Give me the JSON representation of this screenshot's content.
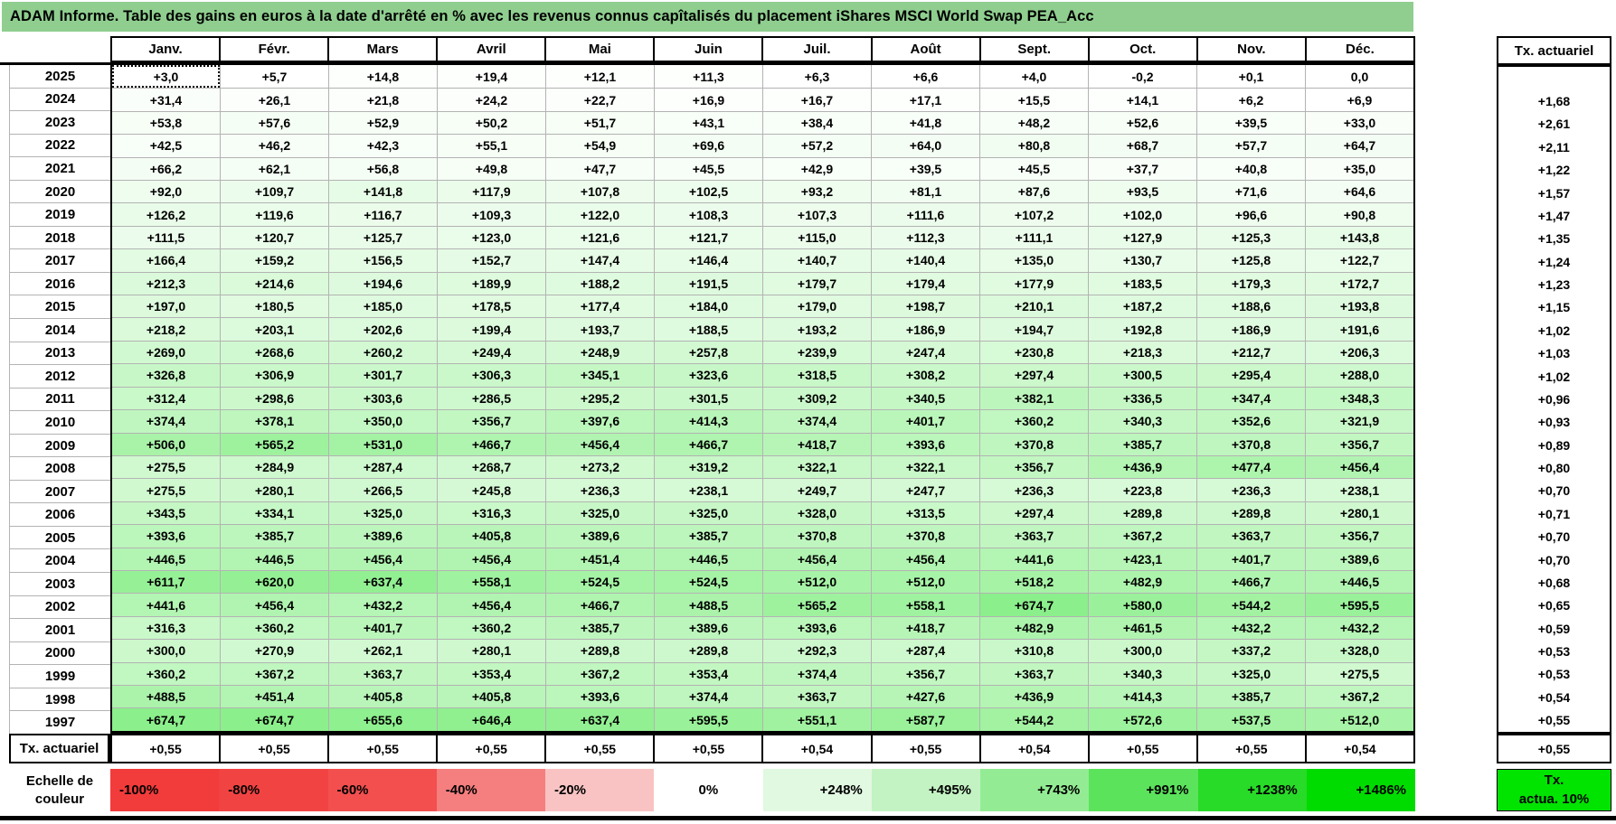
{
  "title": "ADAM Informe. Table des gains en euros à la date d'arrêté en % avec les revenus connus capîtalisés du placement iShares MSCI World Swap PEA_Acc",
  "columns": [
    "Janv.",
    "Févr.",
    "Mars",
    "Avril",
    "Mai",
    "Juin",
    "Juil.",
    "Août",
    "Sept.",
    "Oct.",
    "Nov.",
    "Déc."
  ],
  "right_column_header": "Tx. actuariel",
  "selected_cell": {
    "row_index": 0,
    "col_index": 0
  },
  "rows": [
    {
      "year": "2025",
      "values": [
        "+3,0",
        "+5,7",
        "+14,8",
        "+19,4",
        "+12,1",
        "+11,3",
        "+6,3",
        "+6,6",
        "+4,0",
        "-0,2",
        "+0,1",
        "0,0"
      ],
      "tx": ""
    },
    {
      "year": "2024",
      "values": [
        "+31,4",
        "+26,1",
        "+21,8",
        "+24,2",
        "+22,7",
        "+16,9",
        "+16,7",
        "+17,1",
        "+15,5",
        "+14,1",
        "+6,2",
        "+6,9"
      ],
      "tx": "+1,68"
    },
    {
      "year": "2023",
      "values": [
        "+53,8",
        "+57,6",
        "+52,9",
        "+50,2",
        "+51,7",
        "+43,1",
        "+38,4",
        "+41,8",
        "+48,2",
        "+52,6",
        "+39,5",
        "+33,0"
      ],
      "tx": "+2,61"
    },
    {
      "year": "2022",
      "values": [
        "+42,5",
        "+46,2",
        "+42,3",
        "+55,1",
        "+54,9",
        "+69,6",
        "+57,2",
        "+64,0",
        "+80,8",
        "+68,7",
        "+57,7",
        "+64,7"
      ],
      "tx": "+2,11"
    },
    {
      "year": "2021",
      "values": [
        "+66,2",
        "+62,1",
        "+56,8",
        "+49,8",
        "+47,7",
        "+45,5",
        "+42,9",
        "+39,5",
        "+45,5",
        "+37,7",
        "+40,8",
        "+35,0"
      ],
      "tx": "+1,22"
    },
    {
      "year": "2020",
      "values": [
        "+92,0",
        "+109,7",
        "+141,8",
        "+117,9",
        "+107,8",
        "+102,5",
        "+93,2",
        "+81,1",
        "+87,6",
        "+93,5",
        "+71,6",
        "+64,6"
      ],
      "tx": "+1,57"
    },
    {
      "year": "2019",
      "values": [
        "+126,2",
        "+119,6",
        "+116,7",
        "+109,3",
        "+122,0",
        "+108,3",
        "+107,3",
        "+111,6",
        "+107,2",
        "+102,0",
        "+96,6",
        "+90,8"
      ],
      "tx": "+1,47"
    },
    {
      "year": "2018",
      "values": [
        "+111,5",
        "+120,7",
        "+125,7",
        "+123,0",
        "+121,6",
        "+121,7",
        "+115,0",
        "+112,3",
        "+111,1",
        "+127,9",
        "+125,3",
        "+143,8"
      ],
      "tx": "+1,35"
    },
    {
      "year": "2017",
      "values": [
        "+166,4",
        "+159,2",
        "+156,5",
        "+152,7",
        "+147,4",
        "+146,4",
        "+140,7",
        "+140,4",
        "+135,0",
        "+130,7",
        "+125,8",
        "+122,7"
      ],
      "tx": "+1,24"
    },
    {
      "year": "2016",
      "values": [
        "+212,3",
        "+214,6",
        "+194,6",
        "+189,9",
        "+188,2",
        "+191,5",
        "+179,7",
        "+179,4",
        "+177,9",
        "+183,5",
        "+179,3",
        "+172,7"
      ],
      "tx": "+1,23"
    },
    {
      "year": "2015",
      "values": [
        "+197,0",
        "+180,5",
        "+185,0",
        "+178,5",
        "+177,4",
        "+184,0",
        "+179,0",
        "+198,7",
        "+210,1",
        "+187,2",
        "+188,6",
        "+193,8"
      ],
      "tx": "+1,15"
    },
    {
      "year": "2014",
      "values": [
        "+218,2",
        "+203,1",
        "+202,6",
        "+199,4",
        "+193,7",
        "+188,5",
        "+193,2",
        "+186,9",
        "+194,7",
        "+192,8",
        "+186,9",
        "+191,6"
      ],
      "tx": "+1,02"
    },
    {
      "year": "2013",
      "values": [
        "+269,0",
        "+268,6",
        "+260,2",
        "+249,4",
        "+248,9",
        "+257,8",
        "+239,9",
        "+247,4",
        "+230,8",
        "+218,3",
        "+212,7",
        "+206,3"
      ],
      "tx": "+1,03"
    },
    {
      "year": "2012",
      "values": [
        "+326,8",
        "+306,9",
        "+301,7",
        "+306,3",
        "+345,1",
        "+323,6",
        "+318,5",
        "+308,2",
        "+297,4",
        "+300,5",
        "+295,4",
        "+288,0"
      ],
      "tx": "+1,02"
    },
    {
      "year": "2011",
      "values": [
        "+312,4",
        "+298,6",
        "+303,6",
        "+286,5",
        "+295,2",
        "+301,5",
        "+309,2",
        "+340,5",
        "+382,1",
        "+336,5",
        "+347,4",
        "+348,3"
      ],
      "tx": "+0,96"
    },
    {
      "year": "2010",
      "values": [
        "+374,4",
        "+378,1",
        "+350,0",
        "+356,7",
        "+397,6",
        "+414,3",
        "+374,4",
        "+401,7",
        "+360,2",
        "+340,3",
        "+352,6",
        "+321,9"
      ],
      "tx": "+0,93"
    },
    {
      "year": "2009",
      "values": [
        "+506,0",
        "+565,2",
        "+531,0",
        "+466,7",
        "+456,4",
        "+466,7",
        "+418,7",
        "+393,6",
        "+370,8",
        "+385,7",
        "+370,8",
        "+356,7"
      ],
      "tx": "+0,89"
    },
    {
      "year": "2008",
      "values": [
        "+275,5",
        "+284,9",
        "+287,4",
        "+268,7",
        "+273,2",
        "+319,2",
        "+322,1",
        "+322,1",
        "+356,7",
        "+436,9",
        "+477,4",
        "+456,4"
      ],
      "tx": "+0,80"
    },
    {
      "year": "2007",
      "values": [
        "+275,5",
        "+280,1",
        "+266,5",
        "+245,8",
        "+236,3",
        "+238,1",
        "+249,7",
        "+247,7",
        "+236,3",
        "+223,8",
        "+236,3",
        "+238,1"
      ],
      "tx": "+0,70"
    },
    {
      "year": "2006",
      "values": [
        "+343,5",
        "+334,1",
        "+325,0",
        "+316,3",
        "+325,0",
        "+325,0",
        "+328,0",
        "+313,5",
        "+297,4",
        "+289,8",
        "+289,8",
        "+280,1"
      ],
      "tx": "+0,71"
    },
    {
      "year": "2005",
      "values": [
        "+393,6",
        "+385,7",
        "+389,6",
        "+405,8",
        "+389,6",
        "+385,7",
        "+370,8",
        "+370,8",
        "+363,7",
        "+367,2",
        "+363,7",
        "+356,7"
      ],
      "tx": "+0,70"
    },
    {
      "year": "2004",
      "values": [
        "+446,5",
        "+446,5",
        "+456,4",
        "+456,4",
        "+451,4",
        "+446,5",
        "+456,4",
        "+456,4",
        "+441,6",
        "+423,1",
        "+401,7",
        "+389,6"
      ],
      "tx": "+0,70"
    },
    {
      "year": "2003",
      "values": [
        "+611,7",
        "+620,0",
        "+637,4",
        "+558,1",
        "+524,5",
        "+524,5",
        "+512,0",
        "+512,0",
        "+518,2",
        "+482,9",
        "+466,7",
        "+446,5"
      ],
      "tx": "+0,68"
    },
    {
      "year": "2002",
      "values": [
        "+441,6",
        "+456,4",
        "+432,2",
        "+456,4",
        "+466,7",
        "+488,5",
        "+565,2",
        "+558,1",
        "+674,7",
        "+580,0",
        "+544,2",
        "+595,5"
      ],
      "tx": "+0,65"
    },
    {
      "year": "2001",
      "values": [
        "+316,3",
        "+360,2",
        "+401,7",
        "+360,2",
        "+385,7",
        "+389,6",
        "+393,6",
        "+418,7",
        "+482,9",
        "+461,5",
        "+432,2",
        "+432,2"
      ],
      "tx": "+0,59"
    },
    {
      "year": "2000",
      "values": [
        "+300,0",
        "+270,9",
        "+262,1",
        "+280,1",
        "+289,8",
        "+289,8",
        "+292,3",
        "+287,4",
        "+310,8",
        "+300,0",
        "+337,2",
        "+328,0"
      ],
      "tx": "+0,53"
    },
    {
      "year": "1999",
      "values": [
        "+360,2",
        "+367,2",
        "+363,7",
        "+353,4",
        "+367,2",
        "+353,4",
        "+374,4",
        "+356,7",
        "+363,7",
        "+340,3",
        "+325,0",
        "+275,5"
      ],
      "tx": "+0,53"
    },
    {
      "year": "1998",
      "values": [
        "+488,5",
        "+451,4",
        "+405,8",
        "+405,8",
        "+393,6",
        "+374,4",
        "+363,7",
        "+427,6",
        "+436,9",
        "+414,3",
        "+385,7",
        "+367,2"
      ],
      "tx": "+0,54"
    },
    {
      "year": "1997",
      "values": [
        "+674,7",
        "+674,7",
        "+655,6",
        "+646,4",
        "+637,4",
        "+595,5",
        "+551,1",
        "+587,7",
        "+544,2",
        "+572,6",
        "+537,5",
        "+512,0"
      ],
      "tx": "+0,55"
    }
  ],
  "footer_row": {
    "label": "Tx. actuariel",
    "values": [
      "+0,55",
      "+0,55",
      "+0,55",
      "+0,55",
      "+0,55",
      "+0,55",
      "+0,54",
      "+0,55",
      "+0,54",
      "+0,55",
      "+0,55",
      "+0,54"
    ],
    "tx": "+0,55"
  },
  "color_scale": {
    "label_line1": "Echelle de",
    "label_line2": "couleur",
    "stops": [
      {
        "label": "-100%",
        "color": "#F23B3B",
        "align": "left"
      },
      {
        "label": "-80%",
        "color": "#F24343",
        "align": "left"
      },
      {
        "label": "-60%",
        "color": "#F34F4F",
        "align": "left"
      },
      {
        "label": "-40%",
        "color": "#F57E7E",
        "align": "left"
      },
      {
        "label": "-20%",
        "color": "#F9C3C3",
        "align": "left"
      },
      {
        "label": "0%",
        "color": "#FFFFFF",
        "align": "center"
      },
      {
        "label": "+248%",
        "color": "#E1F8E1",
        "align": "right"
      },
      {
        "label": "+495%",
        "color": "#C3F3C3",
        "align": "right"
      },
      {
        "label": "+743%",
        "color": "#93EC93",
        "align": "right"
      },
      {
        "label": "+991%",
        "color": "#5CE35C",
        "align": "right"
      },
      {
        "label": "+1238%",
        "color": "#28DB28",
        "align": "right"
      },
      {
        "label": "+1486%",
        "color": "#00DC00",
        "align": "right"
      }
    ],
    "right_box": {
      "line1": "Tx.",
      "line2": "actua. 10%"
    }
  },
  "colors": {
    "title_bg": "#8FCE8F",
    "grid_line": "#B3B3B3",
    "heatmap_green_max": "#00DC00",
    "heatmap_red_min": "#F23C3C",
    "heatmap_max_value": 1486,
    "heatmap_min_value": -100,
    "green_box_bg": "#00E400"
  }
}
